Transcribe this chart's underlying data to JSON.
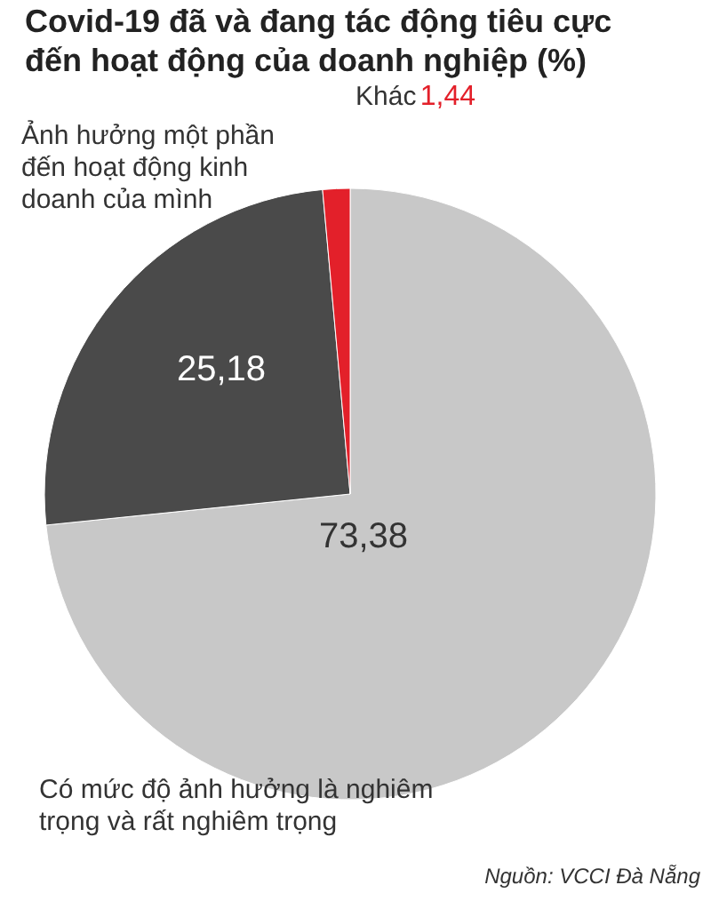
{
  "chart_data": {
    "type": "pie",
    "title": "Covid-19 đã và đang tác động tiêu cực đến hoạt động của doanh nghiệp (%)",
    "categories": [
      "Có mức độ ảnh hưởng là nghiêm trọng và rất nghiêm trọng",
      "Ảnh hưởng một phần đến hoạt động kinh doanh của mình",
      "Khác"
    ],
    "values": [
      73.38,
      25.18,
      1.44
    ],
    "colors": [
      "#c8c8c8",
      "#4a4a4a",
      "#e3202a"
    ],
    "value_labels": [
      "73,38",
      "25,18",
      "1,44"
    ],
    "annotations": [
      "Nguồn: VCCI Đà Nẵng"
    ]
  }
}
